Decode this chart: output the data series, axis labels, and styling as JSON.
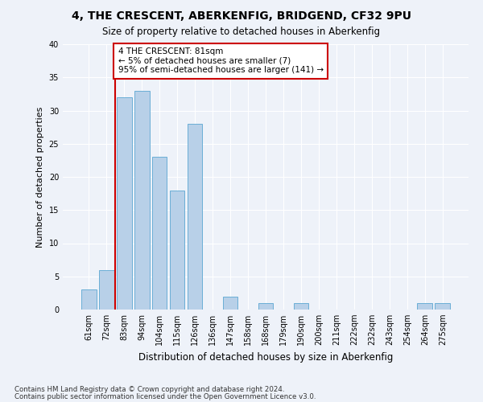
{
  "title1": "4, THE CRESCENT, ABERKENFIG, BRIDGEND, CF32 9PU",
  "title2": "Size of property relative to detached houses in Aberkenfig",
  "xlabel": "Distribution of detached houses by size in Aberkenfig",
  "ylabel": "Number of detached properties",
  "categories": [
    "61sqm",
    "72sqm",
    "83sqm",
    "94sqm",
    "104sqm",
    "115sqm",
    "126sqm",
    "136sqm",
    "147sqm",
    "158sqm",
    "168sqm",
    "179sqm",
    "190sqm",
    "200sqm",
    "211sqm",
    "222sqm",
    "232sqm",
    "243sqm",
    "254sqm",
    "264sqm",
    "275sqm"
  ],
  "values": [
    3,
    6,
    32,
    33,
    23,
    18,
    28,
    0,
    2,
    0,
    1,
    0,
    1,
    0,
    0,
    0,
    0,
    0,
    0,
    1,
    1
  ],
  "bar_color": "#b8d0e8",
  "bar_edge_color": "#6aaed6",
  "vline_color": "#cc0000",
  "vline_pos": 1.5,
  "annotation_text": "4 THE CRESCENT: 81sqm\n← 5% of detached houses are smaller (7)\n95% of semi-detached houses are larger (141) →",
  "annotation_box_color": "white",
  "annotation_box_edge": "#cc0000",
  "footer1": "Contains HM Land Registry data © Crown copyright and database right 2024.",
  "footer2": "Contains public sector information licensed under the Open Government Licence v3.0.",
  "bg_color": "#eef2f9",
  "grid_color": "white",
  "ylim": [
    0,
    40
  ],
  "yticks": [
    0,
    5,
    10,
    15,
    20,
    25,
    30,
    35,
    40
  ]
}
